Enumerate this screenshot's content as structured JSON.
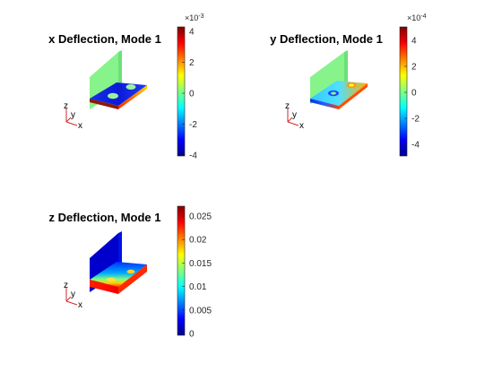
{
  "chart_data": [
    {
      "type": "heatmap",
      "title": "x Deflection, Mode 1",
      "colormap": "jet",
      "clim": [
        -0.004,
        0.004
      ],
      "colorbar": {
        "ticks": [
          4,
          2,
          0,
          -2,
          -4
        ],
        "tick_labels": [
          "4",
          "2",
          "0",
          "-2",
          "-4"
        ],
        "multiplier_prefix": "×10",
        "multiplier_exponent": "-3"
      },
      "triad": {
        "z": "z",
        "y": "y",
        "x": "x"
      }
    },
    {
      "type": "heatmap",
      "title": "y Deflection, Mode 1",
      "colormap": "jet",
      "clim": [
        -0.0005,
        0.0005
      ],
      "colorbar": {
        "ticks": [
          4,
          2,
          0,
          -2,
          -4
        ],
        "tick_labels": [
          "4",
          "2",
          "0",
          "-2",
          "-4"
        ],
        "multiplier_prefix": "×10",
        "multiplier_exponent": "-4"
      },
      "triad": {
        "z": "z",
        "y": "y",
        "x": "x"
      }
    },
    {
      "type": "heatmap",
      "title": "z Deflection, Mode 1",
      "colormap": "jet",
      "clim": [
        0,
        0.028
      ],
      "colorbar": {
        "ticks": [
          0.025,
          0.02,
          0.015,
          0.01,
          0.005,
          0
        ],
        "tick_labels": [
          "0.025",
          "0.02",
          "0.015",
          "0.01",
          "0.005",
          "0"
        ],
        "multiplier_prefix": "",
        "multiplier_exponent": ""
      },
      "triad": {
        "z": "z",
        "y": "y",
        "x": "x"
      }
    }
  ],
  "colors": {
    "jet_dark_blue": "#00008f",
    "jet_blue": "#0000ff",
    "jet_cyan": "#00ffff",
    "jet_yellow": "#ffff00",
    "jet_red": "#ff0000",
    "jet_dark_red": "#800000",
    "triad_red": "#d62728"
  }
}
